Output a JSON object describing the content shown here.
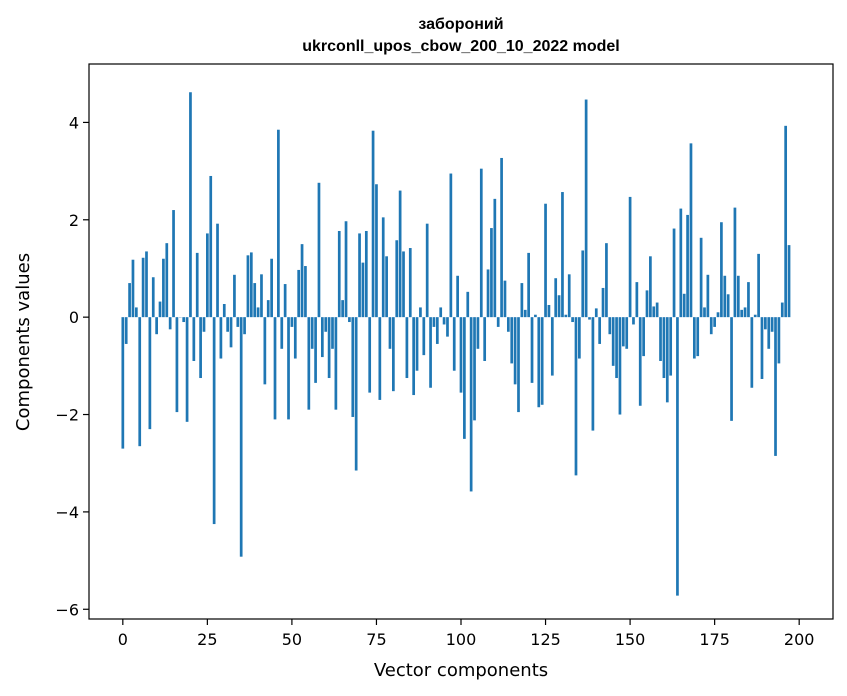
{
  "chart_data": {
    "type": "bar",
    "title": "забороний",
    "subtitle": "ukrconll_upos_cbow_200_10_2022 model",
    "xlabel": "Vector components",
    "ylabel": "Components values",
    "xlim": [
      -10,
      210
    ],
    "ylim": [
      -6.2,
      5.2
    ],
    "xticks": [
      0,
      25,
      50,
      75,
      100,
      125,
      150,
      175,
      200
    ],
    "yticks": [
      -6,
      -4,
      -2,
      0,
      2,
      4
    ],
    "ytick_labels": [
      "−6",
      "−4",
      "−2",
      "0",
      "2",
      "4"
    ],
    "color": "#1f77b4",
    "grid": false,
    "values": [
      -2.7,
      -0.55,
      0.7,
      1.18,
      0.2,
      -2.65,
      1.22,
      1.35,
      -2.3,
      0.82,
      -0.35,
      0.32,
      1.2,
      1.52,
      -0.25,
      2.2,
      -1.95,
      0.0,
      -0.1,
      -2.15,
      4.62,
      -0.9,
      1.32,
      -1.25,
      -0.3,
      1.72,
      2.9,
      -4.25,
      1.92,
      -0.85,
      0.27,
      -0.3,
      -0.62,
      0.87,
      -0.2,
      -4.92,
      -0.35,
      1.27,
      1.33,
      0.7,
      0.2,
      0.88,
      -1.38,
      0.35,
      1.2,
      -2.1,
      3.85,
      -0.65,
      0.68,
      -2.1,
      -0.2,
      -0.85,
      0.97,
      1.5,
      1.05,
      -1.9,
      -0.65,
      -1.35,
      2.76,
      -0.82,
      -0.3,
      -1.25,
      -0.65,
      -1.9,
      1.77,
      0.35,
      1.97,
      -0.1,
      -2.05,
      -3.15,
      1.72,
      1.12,
      1.77,
      -1.55,
      3.83,
      2.73,
      -1.7,
      2.05,
      1.25,
      -0.65,
      -1.52,
      1.58,
      2.6,
      1.35,
      -1.25,
      1.42,
      -1.6,
      -1.1,
      0.2,
      -0.78,
      1.92,
      -1.45,
      -0.2,
      -0.55,
      0.2,
      -0.15,
      -0.4,
      2.95,
      -1.1,
      0.85,
      -1.55,
      -2.5,
      0.52,
      -3.58,
      -2.12,
      -0.65,
      3.05,
      -0.9,
      0.98,
      1.83,
      2.43,
      -0.2,
      3.27,
      0.75,
      -0.3,
      -0.95,
      -1.38,
      -1.95,
      0.7,
      0.15,
      1.32,
      -1.35,
      0.05,
      -1.85,
      -1.8,
      2.33,
      0.25,
      -1.2,
      0.8,
      0.45,
      2.57,
      0.05,
      0.88,
      -0.1,
      -3.25,
      -0.85,
      1.37,
      4.47,
      -0.05,
      -2.33,
      0.18,
      -0.55,
      0.6,
      1.52,
      -0.35,
      -1.0,
      -1.25,
      -2.0,
      -0.6,
      -0.65,
      2.47,
      -0.15,
      0.72,
      -1.82,
      -0.8,
      0.55,
      1.25,
      0.22,
      0.3,
      -0.9,
      -1.25,
      -1.75,
      -1.2,
      1.82,
      -5.72,
      2.23,
      0.48,
      2.1,
      3.57,
      -0.85,
      -0.8,
      1.63,
      0.2,
      0.87,
      -0.35,
      -0.2,
      0.1,
      1.95,
      0.85,
      0.47,
      -2.13,
      2.25,
      0.85,
      0.15,
      0.2,
      0.72,
      -1.45,
      0.05,
      1.3,
      -1.27,
      -0.25,
      -0.65,
      -0.3,
      -2.85,
      -0.95,
      0.3,
      3.93,
      1.48
    ]
  }
}
